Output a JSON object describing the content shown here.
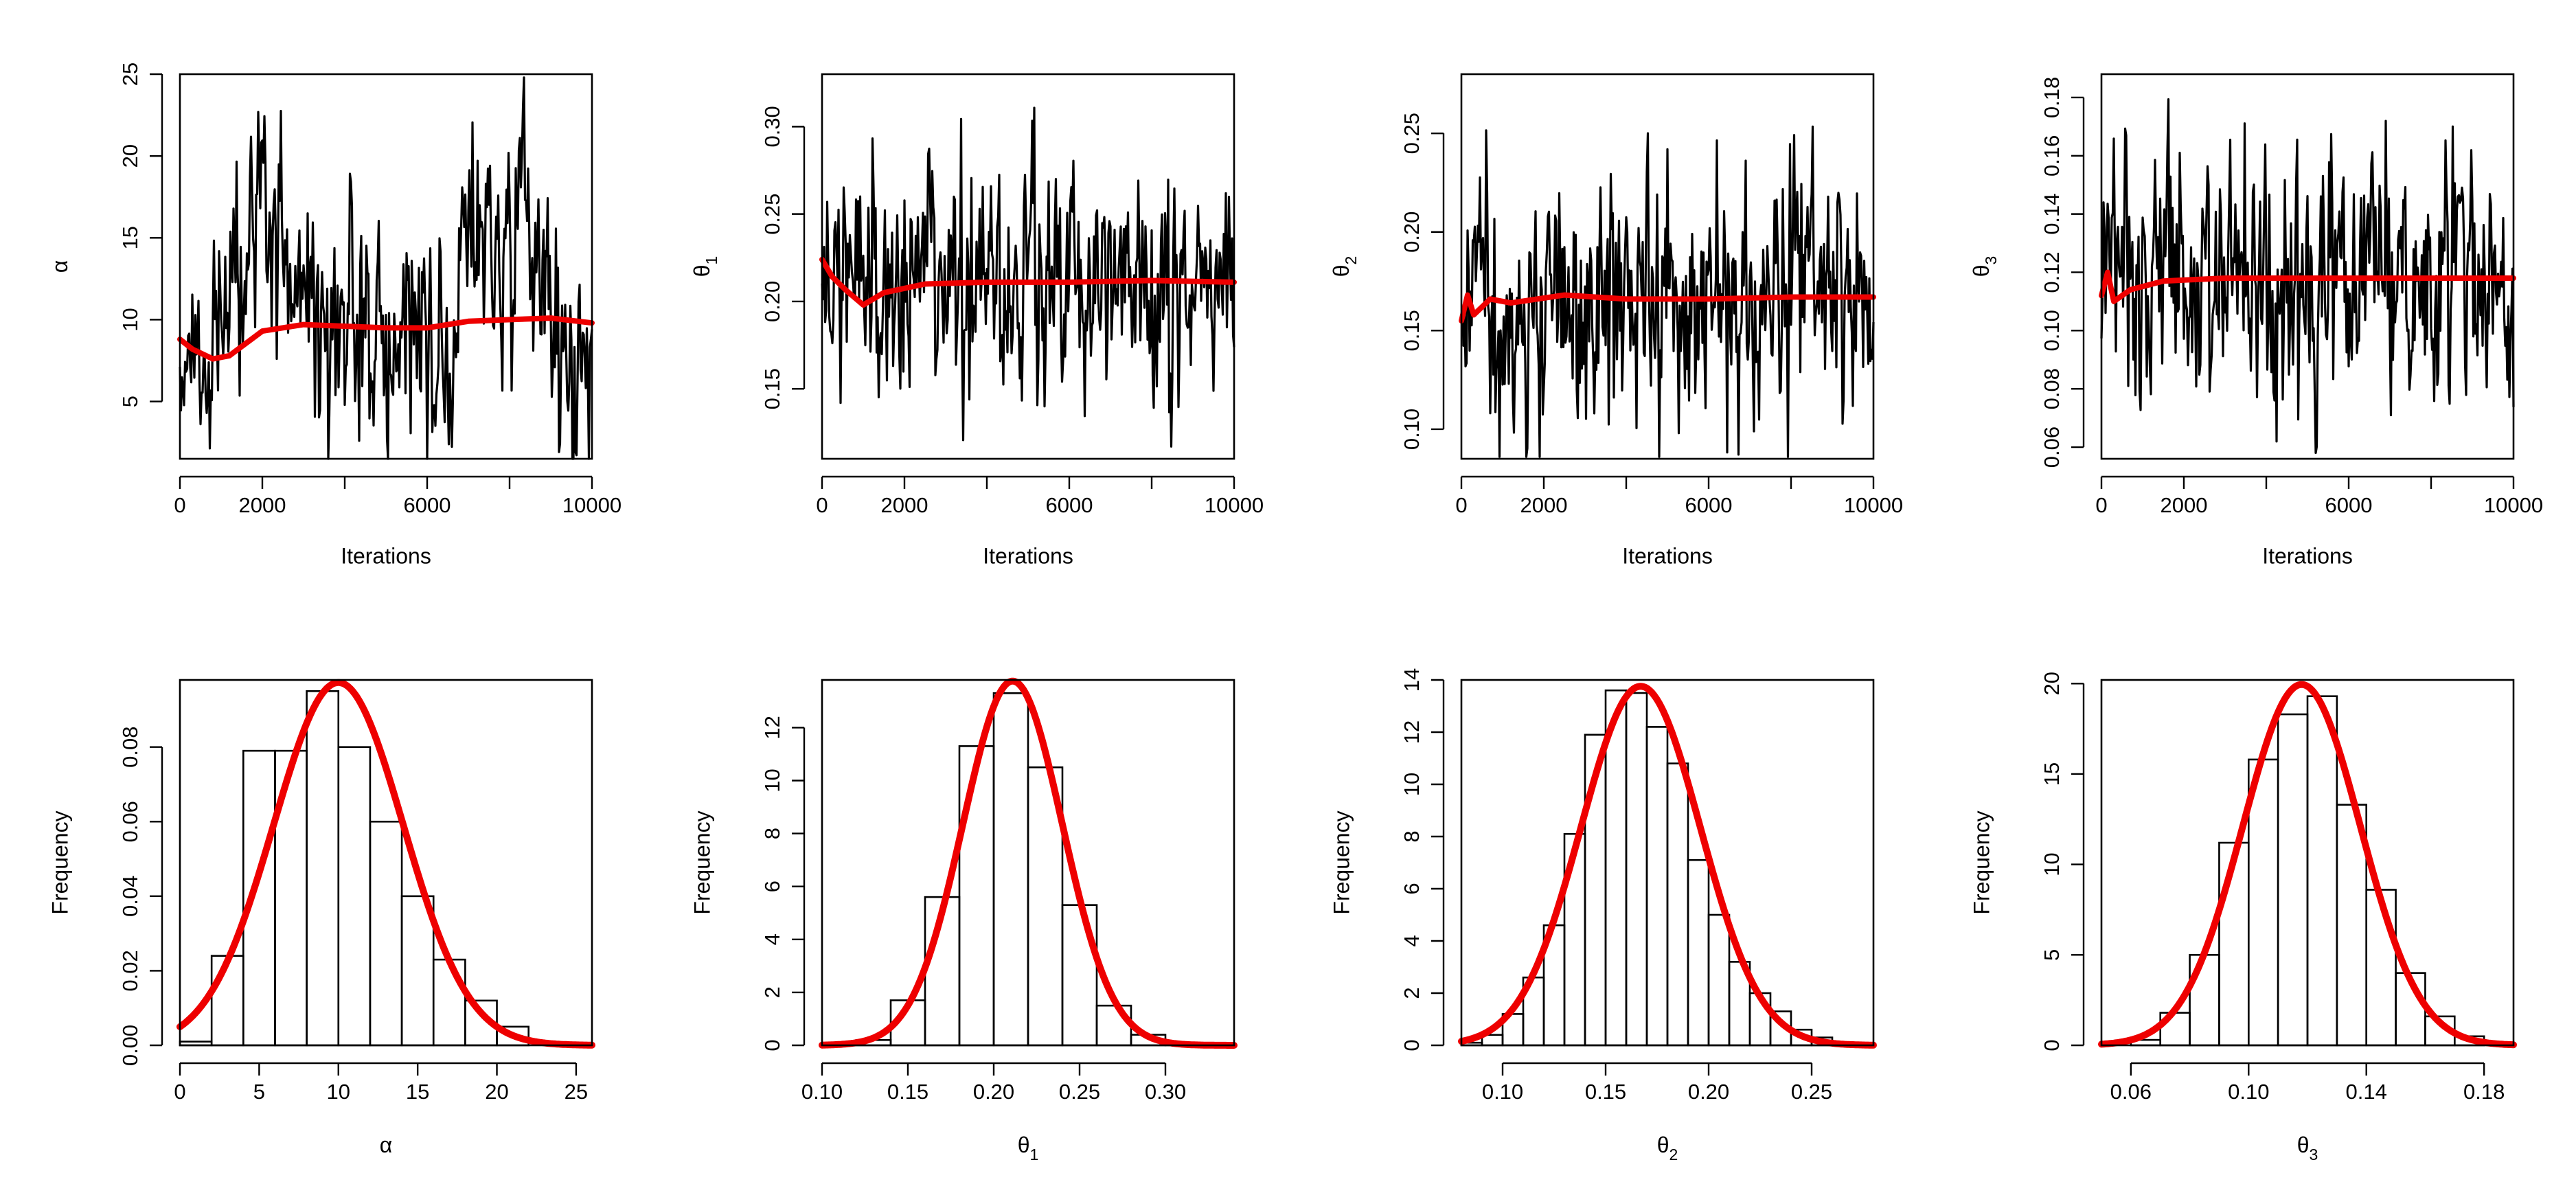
{
  "chart_data": [
    {
      "type": "line",
      "panel": "trace-alpha",
      "title": "",
      "xlabel": "Iterations",
      "ylabel": "α",
      "ylabel_sub": "",
      "xlim": [
        0,
        10000
      ],
      "ylim": [
        1.5,
        25
      ],
      "xticks": [
        0,
        2000,
        4000,
        6000,
        8000,
        10000
      ],
      "xtick_labels": [
        "0",
        "2000",
        "",
        "6000",
        "",
        "10000"
      ],
      "yticks": [
        5,
        10,
        15,
        20,
        25
      ],
      "ytick_labels": [
        "5",
        "10",
        "15",
        "20",
        "25"
      ],
      "trace": {
        "n": 10000,
        "mean": 9.8,
        "trace_min": 1.5,
        "trace_max": 24.8,
        "anchors": [
          [
            0,
            9
          ],
          [
            600,
            7
          ],
          [
            1000,
            8
          ],
          [
            1600,
            13
          ],
          [
            2000,
            19
          ],
          [
            2400,
            15
          ],
          [
            3000,
            11
          ],
          [
            3600,
            9
          ],
          [
            4200,
            12
          ],
          [
            5000,
            8
          ],
          [
            5600,
            10
          ],
          [
            6400,
            7
          ],
          [
            7200,
            17
          ],
          [
            7800,
            12
          ],
          [
            8400,
            18
          ],
          [
            9000,
            8
          ],
          [
            9600,
            6
          ],
          [
            10000,
            6
          ]
        ],
        "noise_sd": 3.2
      },
      "series": [
        {
          "name": "trace",
          "color": "#000000"
        },
        {
          "name": "running mean",
          "color": "#ee0000",
          "values": [
            [
              0,
              8.8
            ],
            [
              300,
              8.2
            ],
            [
              800,
              7.6
            ],
            [
              1200,
              7.8
            ],
            [
              2000,
              9.3
            ],
            [
              3000,
              9.7
            ],
            [
              4000,
              9.6
            ],
            [
              5000,
              9.5
            ],
            [
              6000,
              9.5
            ],
            [
              7000,
              9.9
            ],
            [
              8000,
              10.0
            ],
            [
              9000,
              10.1
            ],
            [
              10000,
              9.8
            ]
          ]
        }
      ]
    },
    {
      "type": "line",
      "panel": "trace-theta1",
      "title": "",
      "xlabel": "Iterations",
      "ylabel": "θ",
      "ylabel_sub": "1",
      "xlim": [
        0,
        10000
      ],
      "ylim": [
        0.11,
        0.33
      ],
      "xticks": [
        0,
        2000,
        4000,
        6000,
        8000,
        10000
      ],
      "xtick_labels": [
        "0",
        "2000",
        "",
        "6000",
        "",
        "10000"
      ],
      "yticks": [
        0.15,
        0.2,
        0.25,
        0.3
      ],
      "ytick_labels": [
        "0.15",
        "0.20",
        "0.25",
        "0.30"
      ],
      "trace": {
        "n": 10000,
        "mean": 0.21,
        "trace_min": 0.117,
        "trace_max": 0.33,
        "noise_sd": 0.029
      },
      "series": [
        {
          "name": "trace",
          "color": "#000000"
        },
        {
          "name": "running mean",
          "color": "#ee0000",
          "values": [
            [
              0,
              0.224
            ],
            [
              250,
              0.214
            ],
            [
              600,
              0.206
            ],
            [
              1000,
              0.198
            ],
            [
              1500,
              0.205
            ],
            [
              2500,
              0.21
            ],
            [
              4000,
              0.211
            ],
            [
              6000,
              0.211
            ],
            [
              8000,
              0.212
            ],
            [
              10000,
              0.211
            ]
          ]
        }
      ]
    },
    {
      "type": "line",
      "panel": "trace-theta2",
      "title": "",
      "xlabel": "Iterations",
      "ylabel": "θ",
      "ylabel_sub": "2",
      "xlim": [
        0,
        10000
      ],
      "ylim": [
        0.085,
        0.28
      ],
      "xticks": [
        0,
        2000,
        4000,
        6000,
        8000,
        10000
      ],
      "xtick_labels": [
        "0",
        "2000",
        "",
        "6000",
        "",
        "10000"
      ],
      "yticks": [
        0.1,
        0.15,
        0.2,
        0.25
      ],
      "ytick_labels": [
        "0.10",
        "0.15",
        "0.20",
        "0.25"
      ],
      "trace": {
        "n": 10000,
        "mean": 0.167,
        "trace_min": 0.086,
        "trace_max": 0.278,
        "noise_sd": 0.029
      },
      "series": [
        {
          "name": "trace",
          "color": "#000000"
        },
        {
          "name": "running mean",
          "color": "#ee0000",
          "values": [
            [
              0,
              0.155
            ],
            [
              150,
              0.168
            ],
            [
              300,
              0.158
            ],
            [
              700,
              0.166
            ],
            [
              1200,
              0.164
            ],
            [
              2500,
              0.168
            ],
            [
              4000,
              0.166
            ],
            [
              6000,
              0.166
            ],
            [
              8000,
              0.167
            ],
            [
              10000,
              0.167
            ]
          ]
        }
      ]
    },
    {
      "type": "line",
      "panel": "trace-theta3",
      "title": "",
      "xlabel": "Iterations",
      "ylabel": "θ",
      "ylabel_sub": "3",
      "xlim": [
        0,
        10000
      ],
      "ylim": [
        0.056,
        0.188
      ],
      "xticks": [
        0,
        2000,
        4000,
        6000,
        8000,
        10000
      ],
      "xtick_labels": [
        "0",
        "2000",
        "",
        "6000",
        "",
        "10000"
      ],
      "yticks": [
        0.06,
        0.08,
        0.1,
        0.12,
        0.14,
        0.16,
        0.18
      ],
      "ytick_labels": [
        "0.06",
        "0.08",
        "0.10",
        "0.12",
        "0.14",
        "0.16",
        "0.18"
      ],
      "trace": {
        "n": 10000,
        "mean": 0.118,
        "trace_min": 0.058,
        "trace_max": 0.186,
        "noise_sd": 0.021
      },
      "series": [
        {
          "name": "trace",
          "color": "#000000"
        },
        {
          "name": "running mean",
          "color": "#ee0000",
          "values": [
            [
              0,
              0.112
            ],
            [
              150,
              0.12
            ],
            [
              300,
              0.11
            ],
            [
              700,
              0.114
            ],
            [
              1500,
              0.117
            ],
            [
              3000,
              0.118
            ],
            [
              6000,
              0.118
            ],
            [
              8000,
              0.118
            ],
            [
              10000,
              0.118
            ]
          ]
        }
      ]
    },
    {
      "type": "histogram",
      "panel": "hist-alpha",
      "title": "",
      "xlabel": "α",
      "xlabel_sub": "",
      "ylabel": "Frequency",
      "xlim": [
        0,
        26
      ],
      "ylim": [
        0,
        0.098
      ],
      "xticks": [
        0,
        5,
        10,
        15,
        20,
        25
      ],
      "xtick_labels": [
        "0",
        "5",
        "10",
        "15",
        "20",
        "25"
      ],
      "yticks": [
        0,
        0.02,
        0.04,
        0.06,
        0.08
      ],
      "ytick_labels": [
        "0.00",
        "0.02",
        "0.04",
        "0.06",
        "0.08"
      ],
      "bins": {
        "edges": [
          0,
          2,
          4,
          6,
          8,
          10,
          12,
          14,
          16,
          18,
          20,
          22
        ],
        "values": [
          0.001,
          0.024,
          0.079,
          0.079,
          0.095,
          0.08,
          0.06,
          0.04,
          0.023,
          0.012,
          0.005
        ]
      },
      "density": {
        "type": "normal",
        "mean": 10,
        "sd": 4.1,
        "color": "#ee0000"
      }
    },
    {
      "type": "histogram",
      "panel": "hist-theta1",
      "title": "",
      "xlabel": "θ",
      "xlabel_sub": "1",
      "ylabel": "Frequency",
      "xlim": [
        0.1,
        0.34
      ],
      "ylim": [
        0,
        13.8
      ],
      "xticks": [
        0.1,
        0.15,
        0.2,
        0.25,
        0.3
      ],
      "xtick_labels": [
        "0.10",
        "0.15",
        "0.20",
        "0.25",
        "0.30"
      ],
      "yticks": [
        0,
        2,
        4,
        6,
        8,
        10,
        12
      ],
      "ytick_labels": [
        "0",
        "2",
        "4",
        "6",
        "8",
        "10",
        "12"
      ],
      "bins": {
        "edges": [
          0.12,
          0.14,
          0.16,
          0.18,
          0.2,
          0.22,
          0.24,
          0.26,
          0.28,
          0.3,
          0.32
        ],
        "values": [
          0.2,
          1.7,
          5.6,
          11.3,
          13.3,
          10.5,
          5.3,
          1.5,
          0.4,
          0.05
        ]
      },
      "density": {
        "type": "normal",
        "mean": 0.211,
        "sd": 0.029,
        "color": "#ee0000"
      }
    },
    {
      "type": "histogram",
      "panel": "hist-theta2",
      "title": "",
      "xlabel": "θ",
      "xlabel_sub": "2",
      "ylabel": "Frequency",
      "xlim": [
        0.08,
        0.28
      ],
      "ylim": [
        0,
        14
      ],
      "xticks": [
        0.1,
        0.15,
        0.2,
        0.25
      ],
      "xtick_labels": [
        "0.10",
        "0.15",
        "0.20",
        "0.25"
      ],
      "yticks": [
        0,
        2,
        4,
        6,
        8,
        10,
        12,
        14
      ],
      "ytick_labels": [
        "0",
        "2",
        "4",
        "6",
        "8",
        "10",
        "12",
        "14"
      ],
      "bins": {
        "edges": [
          0.08,
          0.09,
          0.1,
          0.11,
          0.12,
          0.13,
          0.14,
          0.15,
          0.16,
          0.17,
          0.18,
          0.19,
          0.2,
          0.21,
          0.22,
          0.23,
          0.24,
          0.25,
          0.26,
          0.27
        ],
        "values": [
          0.1,
          0.4,
          1.2,
          2.6,
          4.6,
          8.1,
          11.9,
          13.6,
          13.5,
          12.2,
          10.8,
          7.1,
          5.0,
          3.2,
          2.0,
          1.3,
          0.6,
          0.3,
          0.1
        ]
      },
      "density": {
        "type": "normal",
        "mean": 0.167,
        "sd": 0.029,
        "color": "#ee0000"
      }
    },
    {
      "type": "histogram",
      "panel": "hist-theta3",
      "title": "",
      "xlabel": "θ",
      "xlabel_sub": "3",
      "ylabel": "Frequency",
      "xlim": [
        0.05,
        0.19
      ],
      "ylim": [
        0,
        20.2
      ],
      "xticks": [
        0.06,
        0.1,
        0.14,
        0.18
      ],
      "xtick_labels": [
        "0.06",
        "0.10",
        "0.14",
        "0.18"
      ],
      "yticks": [
        0,
        5,
        10,
        15,
        20
      ],
      "ytick_labels": [
        "0",
        "5",
        "10",
        "15",
        "20"
      ],
      "bins": {
        "edges": [
          0.06,
          0.07,
          0.08,
          0.09,
          0.1,
          0.11,
          0.12,
          0.13,
          0.14,
          0.15,
          0.16,
          0.17,
          0.18
        ],
        "values": [
          0.3,
          1.8,
          5.0,
          11.2,
          15.8,
          18.3,
          19.3,
          13.3,
          8.6,
          4.0,
          1.6,
          0.5
        ]
      },
      "density": {
        "type": "normal",
        "mean": 0.118,
        "sd": 0.02,
        "color": "#ee0000"
      }
    }
  ]
}
